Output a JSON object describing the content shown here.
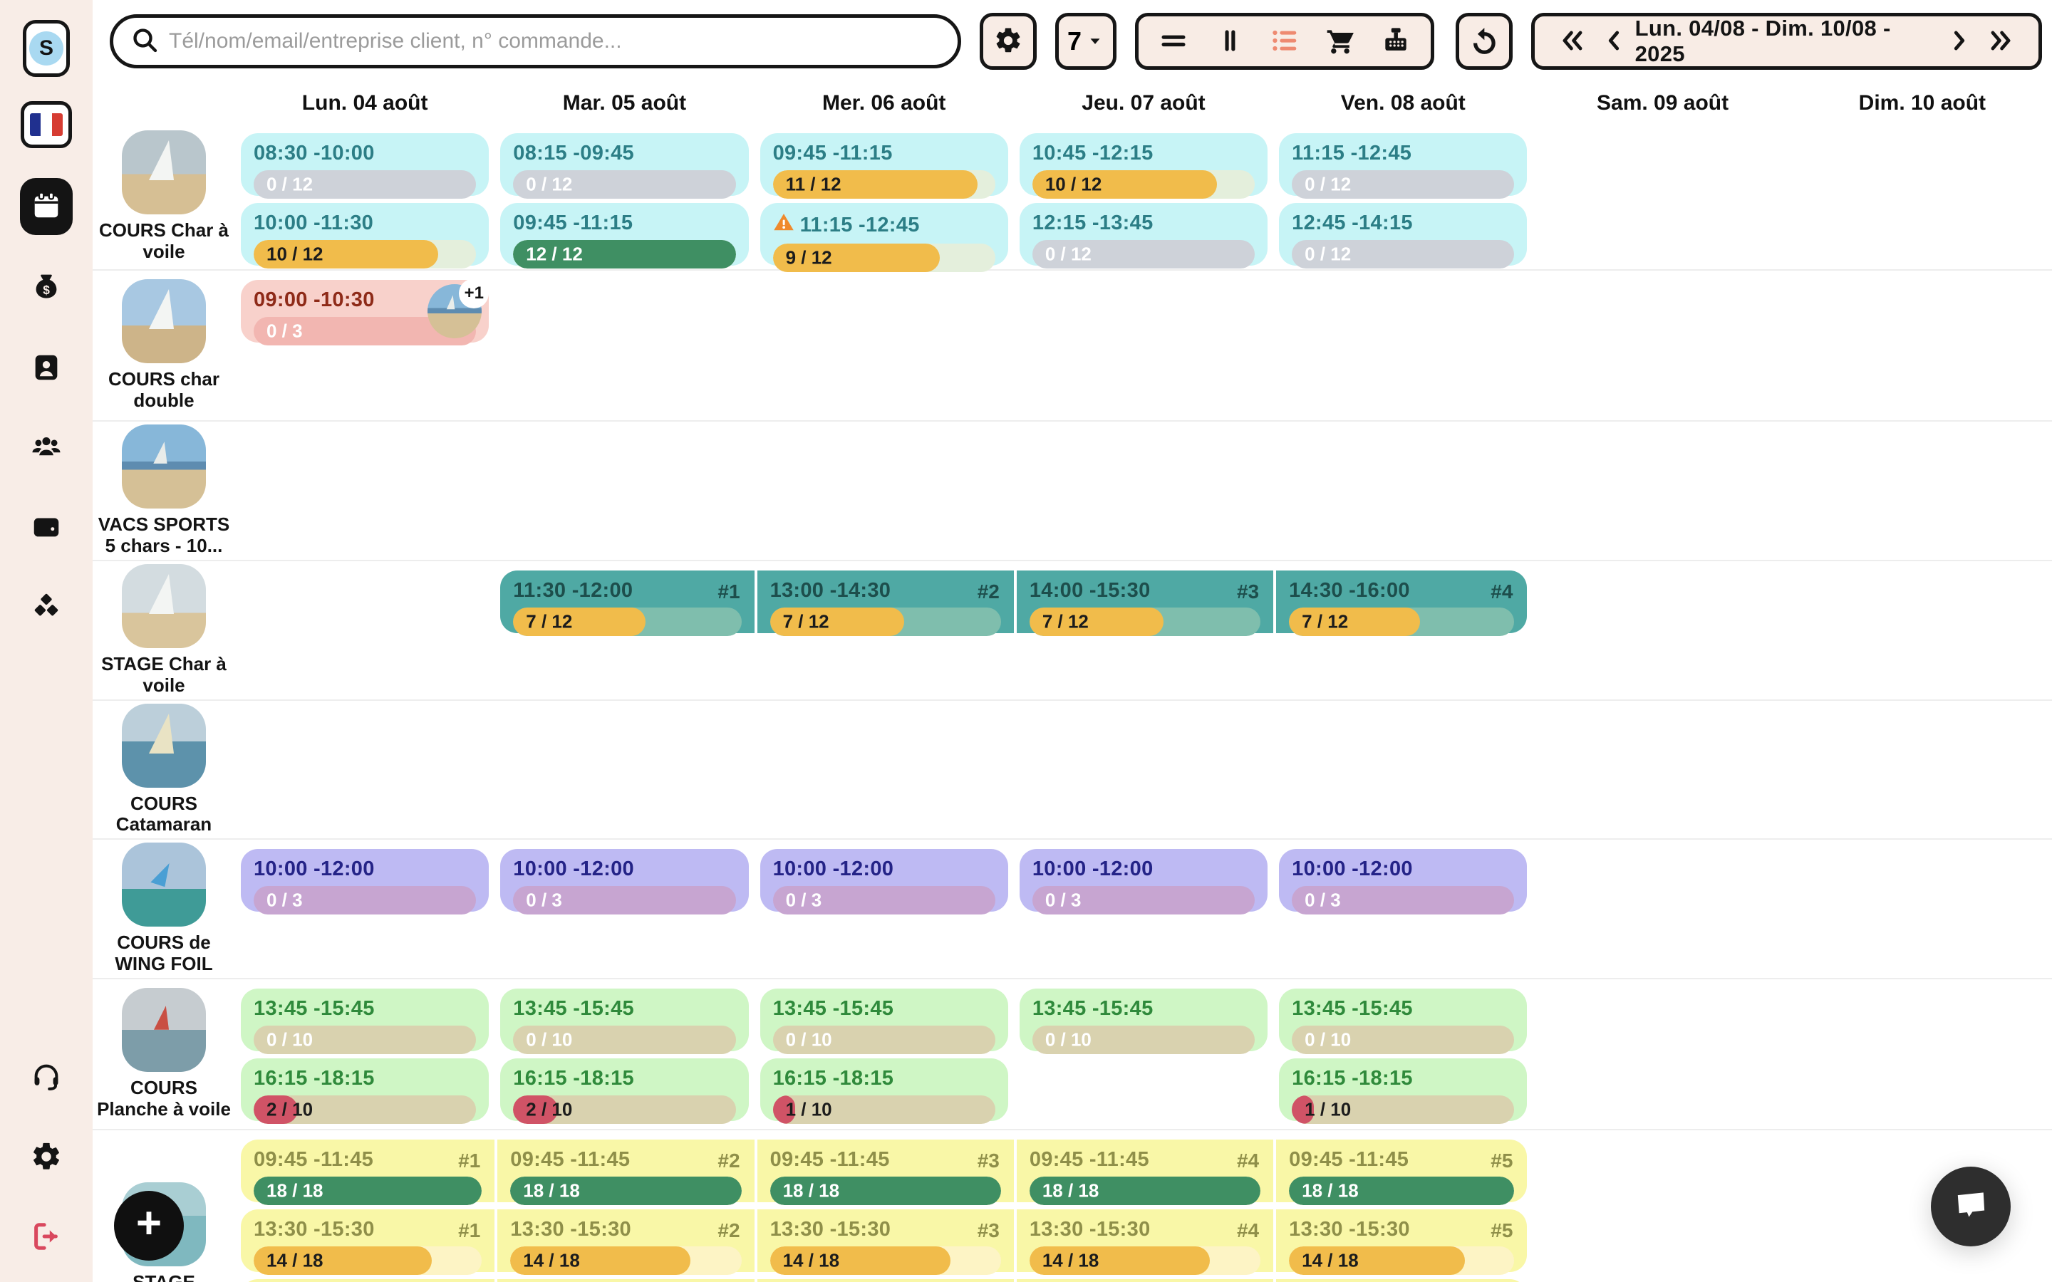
{
  "colors": {
    "sidebar_bg": "#f8ede7",
    "button_bg": "#f8ece5",
    "border": "#161616",
    "accent_salmon": "#ee8a71",
    "logout_red": "#d9485e",
    "avatar_blue": "#a9d9f1",
    "fill_amber": "#f1bc4b",
    "fill_green": "#3f8f63",
    "fill_red": "#d05366",
    "empty_gray": "#ced2d9",
    "warning_orange": "#ef8a2d",
    "theme_cyan_bg": "#c7f4f6",
    "theme_pink_bg": "#f8d1cb",
    "theme_teal_bg": "#4fa9a4",
    "theme_purple_bg": "#bebaf3",
    "theme_lgreen_bg": "#cff6c5",
    "theme_yellow_bg": "#f9f7a7"
  },
  "icons": {
    "search": "magnifier",
    "gear": "settings-cog",
    "caret": "triangle-down",
    "rows-view": "two-horizontal-bars",
    "columns-view": "two-vertical-bars",
    "list-view": "bulleted-list (active, salmon)",
    "cart": "shopping-cart",
    "register": "cash-register",
    "undo": "rotate-left-arrow",
    "chevrons": "week navigation arrows",
    "sidebar": [
      "french-flag",
      "calendar (active)",
      "money-bag",
      "contact-card",
      "users-group",
      "wallet",
      "cubes",
      "support-headset",
      "gear",
      "logout"
    ],
    "warning": "orange triangle exclamation",
    "chat": "speech-bubble",
    "plus": "add"
  },
  "sidebar": {
    "avatar_letter": "S"
  },
  "topbar": {
    "search_placeholder": "Tél/nom/email/entreprise client, n° commande...",
    "view_count": "7",
    "date_range": "Lun. 04/08 - Dim. 10/08 - 2025"
  },
  "fab_label": "+",
  "calendar": {
    "days": [
      "Lun. 04 août",
      "Mar. 05 août",
      "Mer. 06 août",
      "Jeu. 07 août",
      "Ven. 08 août",
      "Sam. 09 août",
      "Dim. 10 août"
    ],
    "rows": [
      {
        "name": "COURS Char à voile",
        "label": [
          "COURS Char à",
          "voile"
        ],
        "theme": "cyan",
        "image": "char",
        "joined": false,
        "subrows": [
          [
            {
              "day": 0,
              "time": "08:30 -10:00",
              "booked": 0,
              "capacity": 12,
              "count": "0 / 12",
              "level": "none"
            },
            {
              "day": 1,
              "time": "08:15 -09:45",
              "booked": 0,
              "capacity": 12,
              "count": "0 / 12",
              "level": "none"
            },
            {
              "day": 2,
              "time": "09:45 -11:15",
              "booked": 11,
              "capacity": 12,
              "count": "11 / 12",
              "level": "mid"
            },
            {
              "day": 3,
              "time": "10:45 -12:15",
              "booked": 10,
              "capacity": 12,
              "count": "10 / 12",
              "level": "mid"
            },
            {
              "day": 4,
              "time": "11:15 -12:45",
              "booked": 0,
              "capacity": 12,
              "count": "0 / 12",
              "level": "none"
            }
          ],
          [
            {
              "day": 0,
              "time": "10:00 -11:30",
              "booked": 10,
              "capacity": 12,
              "count": "10 / 12",
              "level": "mid"
            },
            {
              "day": 1,
              "time": "09:45 -11:15",
              "booked": 12,
              "capacity": 12,
              "count": "12 / 12",
              "level": "full"
            },
            {
              "day": 2,
              "time": "11:15 -12:45",
              "booked": 9,
              "capacity": 12,
              "count": "9 / 12",
              "level": "mid",
              "warning": true
            },
            {
              "day": 3,
              "time": "12:15 -13:45",
              "booked": 0,
              "capacity": 12,
              "count": "0 / 12",
              "level": "none"
            },
            {
              "day": 4,
              "time": "12:45 -14:15",
              "booked": 0,
              "capacity": 12,
              "count": "0 / 12",
              "level": "none"
            }
          ]
        ]
      },
      {
        "name": "COURS char double",
        "label": [
          "COURS char",
          "double"
        ],
        "theme": "pink",
        "image": "double",
        "joined": false,
        "subrows": [
          [
            {
              "day": 0,
              "time": "09:00 -10:30",
              "booked": 0,
              "capacity": 3,
              "count": "0 / 3",
              "level": "none",
              "badge": "+1"
            }
          ]
        ]
      },
      {
        "name": "VACS SPORTS 5 chars - 10...",
        "label": [
          "VACS SPORTS",
          "5 chars - 10..."
        ],
        "theme": "cyan",
        "image": "vacs",
        "joined": false,
        "subrows": []
      },
      {
        "name": "STAGE Char à voile",
        "label": [
          "STAGE Char à",
          "voile"
        ],
        "theme": "teal",
        "image": "stagechar",
        "joined": true,
        "subrows": [
          [
            {
              "day": 1,
              "time": "11:30 -12:00",
              "booked": 7,
              "capacity": 12,
              "count": "7 / 12",
              "level": "mid",
              "tag": "#1"
            },
            {
              "day": 2,
              "time": "13:00 -14:30",
              "booked": 7,
              "capacity": 12,
              "count": "7 / 12",
              "level": "mid",
              "tag": "#2"
            },
            {
              "day": 3,
              "time": "14:00 -15:30",
              "booked": 7,
              "capacity": 12,
              "count": "7 / 12",
              "level": "mid",
              "tag": "#3"
            },
            {
              "day": 4,
              "time": "14:30 -16:00",
              "booked": 7,
              "capacity": 12,
              "count": "7 / 12",
              "level": "mid",
              "tag": "#4"
            }
          ]
        ]
      },
      {
        "name": "COURS Catamaran",
        "label": [
          "COURS",
          "Catamaran"
        ],
        "theme": "cyan",
        "image": "cata",
        "joined": false,
        "subrows": []
      },
      {
        "name": "COURS de WING FOIL",
        "label": [
          "COURS de",
          "WING FOIL"
        ],
        "theme": "purple",
        "image": "wing",
        "joined": false,
        "subrows": [
          [
            {
              "day": 0,
              "time": "10:00 -12:00",
              "booked": 0,
              "capacity": 3,
              "count": "0 / 3",
              "level": "none"
            },
            {
              "day": 1,
              "time": "10:00 -12:00",
              "booked": 0,
              "capacity": 3,
              "count": "0 / 3",
              "level": "none"
            },
            {
              "day": 2,
              "time": "10:00 -12:00",
              "booked": 0,
              "capacity": 3,
              "count": "0 / 3",
              "level": "none"
            },
            {
              "day": 3,
              "time": "10:00 -12:00",
              "booked": 0,
              "capacity": 3,
              "count": "0 / 3",
              "level": "none"
            },
            {
              "day": 4,
              "time": "10:00 -12:00",
              "booked": 0,
              "capacity": 3,
              "count": "0 / 3",
              "level": "none"
            }
          ]
        ]
      },
      {
        "name": "COURS Planche à voile",
        "label": [
          "COURS",
          "Planche à voile"
        ],
        "theme": "lgreen",
        "image": "planche",
        "joined": false,
        "subrows": [
          [
            {
              "day": 0,
              "time": "13:45 -15:45",
              "booked": 0,
              "capacity": 10,
              "count": "0 / 10",
              "level": "none"
            },
            {
              "day": 1,
              "time": "13:45 -15:45",
              "booked": 0,
              "capacity": 10,
              "count": "0 / 10",
              "level": "none"
            },
            {
              "day": 2,
              "time": "13:45 -15:45",
              "booked": 0,
              "capacity": 10,
              "count": "0 / 10",
              "level": "none"
            },
            {
              "day": 3,
              "time": "13:45 -15:45",
              "booked": 0,
              "capacity": 10,
              "count": "0 / 10",
              "level": "none"
            },
            {
              "day": 4,
              "time": "13:45 -15:45",
              "booked": 0,
              "capacity": 10,
              "count": "0 / 10",
              "level": "none"
            }
          ],
          [
            {
              "day": 0,
              "time": "16:15 -18:15",
              "booked": 2,
              "capacity": 10,
              "count": "2 / 10",
              "level": "low"
            },
            {
              "day": 1,
              "time": "16:15 -18:15",
              "booked": 2,
              "capacity": 10,
              "count": "2 / 10",
              "level": "low"
            },
            {
              "day": 2,
              "time": "16:15 -18:15",
              "booked": 1,
              "capacity": 10,
              "count": "1 / 10",
              "level": "low"
            },
            {
              "day": 4,
              "time": "16:15 -18:15",
              "booked": 1,
              "capacity": 10,
              "count": "1 / 10",
              "level": "low"
            }
          ]
        ]
      },
      {
        "name": "STAGE",
        "label": [
          "STAGE"
        ],
        "theme": "yellow",
        "image": "stage",
        "joined": true,
        "subrows": [
          [
            {
              "day": 0,
              "time": "09:45 -11:45",
              "booked": 18,
              "capacity": 18,
              "count": "18 / 18",
              "level": "full",
              "tag": "#1"
            },
            {
              "day": 1,
              "time": "09:45 -11:45",
              "booked": 18,
              "capacity": 18,
              "count": "18 / 18",
              "level": "full",
              "tag": "#2"
            },
            {
              "day": 2,
              "time": "09:45 -11:45",
              "booked": 18,
              "capacity": 18,
              "count": "18 / 18",
              "level": "full",
              "tag": "#3"
            },
            {
              "day": 3,
              "time": "09:45 -11:45",
              "booked": 18,
              "capacity": 18,
              "count": "18 / 18",
              "level": "full",
              "tag": "#4"
            },
            {
              "day": 4,
              "time": "09:45 -11:45",
              "booked": 18,
              "capacity": 18,
              "count": "18 / 18",
              "level": "full",
              "tag": "#5"
            }
          ],
          [
            {
              "day": 0,
              "time": "13:30 -15:30",
              "booked": 14,
              "capacity": 18,
              "count": "14 / 18",
              "level": "mid",
              "tag": "#1"
            },
            {
              "day": 1,
              "time": "13:30 -15:30",
              "booked": 14,
              "capacity": 18,
              "count": "14 / 18",
              "level": "mid",
              "tag": "#2"
            },
            {
              "day": 2,
              "time": "13:30 -15:30",
              "booked": 14,
              "capacity": 18,
              "count": "14 / 18",
              "level": "mid",
              "tag": "#3"
            },
            {
              "day": 3,
              "time": "13:30 -15:30",
              "booked": 14,
              "capacity": 18,
              "count": "14 / 18",
              "level": "mid",
              "tag": "#4"
            },
            {
              "day": 4,
              "time": "13:30 -15:30",
              "booked": 14,
              "capacity": 18,
              "count": "14 / 18",
              "level": "mid",
              "tag": "#5"
            }
          ],
          [
            {
              "day": 0,
              "sliver": true
            },
            {
              "day": 1,
              "sliver": true
            },
            {
              "day": 2,
              "sliver": true
            },
            {
              "day": 3,
              "sliver": true
            },
            {
              "day": 4,
              "sliver": true
            }
          ]
        ]
      }
    ]
  }
}
